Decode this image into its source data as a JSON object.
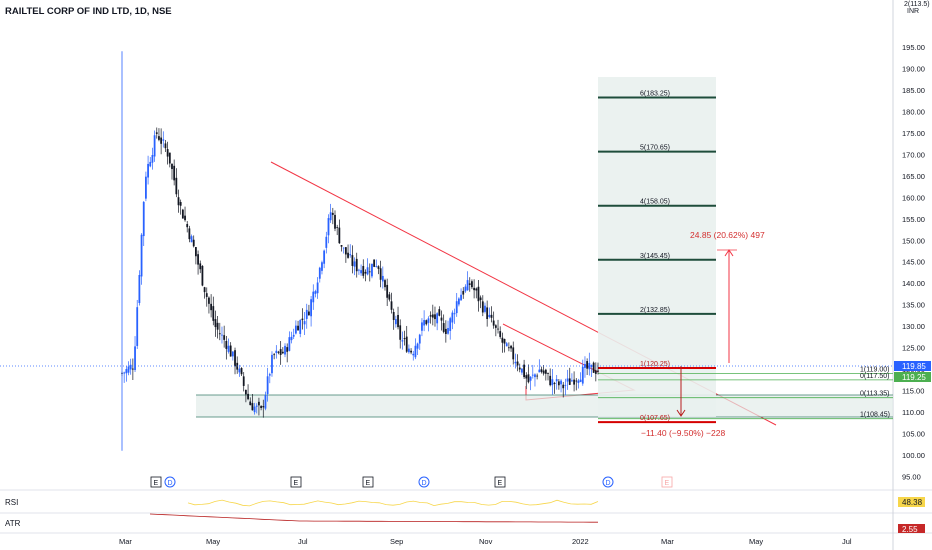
{
  "header": {
    "symbol_title": "RAILTEL CORP OF IND LTD, 1D, NSE",
    "currency_top": "2(113.5)",
    "currency": "INR"
  },
  "colors": {
    "up": "#2962ff",
    "down": "#131722",
    "trend": "#f23645",
    "fib": "#1e4d3b",
    "fib_red": "#d50000",
    "zone": "#e2ece9",
    "rsi": "#f7d64a",
    "atr": "#b71c1c",
    "price_green": "#4caf50",
    "price_blue": "#2962ff"
  },
  "price_axis": {
    "ticks": [
      "195.00",
      "190.00",
      "185.00",
      "180.00",
      "175.00",
      "170.00",
      "165.00",
      "160.00",
      "155.00",
      "150.00",
      "145.00",
      "140.00",
      "135.00",
      "130.00",
      "125.00",
      "120.00",
      "115.00",
      "110.00",
      "105.00",
      "100.00",
      "95.00"
    ]
  },
  "price_tags": {
    "last": "119.85",
    "green": "119.25"
  },
  "time_axis": {
    "labels": [
      "Mar",
      "May",
      "Jul",
      "Sep",
      "Nov",
      "2022",
      "Mar",
      "May",
      "Jul"
    ]
  },
  "events": [
    "E",
    "D",
    "E",
    "E",
    "D",
    "E",
    "D",
    "E"
  ],
  "fib_levels": [
    {
      "label": "6(183.25)",
      "price": 183.25,
      "major": true
    },
    {
      "label": "5(170.65)",
      "price": 170.65,
      "major": true
    },
    {
      "label": "4(158.05)",
      "price": 158.05,
      "major": true
    },
    {
      "label": "3(145.45)",
      "price": 145.45,
      "major": true
    },
    {
      "label": "2(132.85)",
      "price": 132.85,
      "major": true
    },
    {
      "label": "1(120.25)",
      "price": 120.25,
      "major": true,
      "red": true
    },
    {
      "label": "1(119.00)",
      "price": 119.0,
      "major": false
    },
    {
      "label": "0(117.50)",
      "price": 117.5,
      "major": false
    },
    {
      "label": "0(113.35)",
      "price": 113.35,
      "major": false
    },
    {
      "label": "1(108.45)",
      "price": 108.45,
      "major": false
    },
    {
      "label": "0(107.65)",
      "price": 107.65,
      "major": true,
      "red": true
    }
  ],
  "measure_up": "24.85 (20.62%) 497",
  "measure_down": "−11.40 (−9.50%) −228",
  "indicators": {
    "rsi": {
      "label": "RSI",
      "value": "48.38"
    },
    "atr": {
      "label": "ATR",
      "value": "2.55"
    }
  },
  "chart_data": {
    "type": "candlestick",
    "title": "RAILTEL CORP OF IND LTD, 1D, NSE",
    "y_range": [
      93,
      196
    ],
    "approx_close_path": [
      {
        "x": "Feb 26",
        "y": 119
      },
      {
        "x": "Mar 1",
        "y": 121
      },
      {
        "x": "Mar 2",
        "y": 165
      },
      {
        "x": "Mar 3",
        "y": 175
      },
      {
        "x": "Mar 5",
        "y": 170
      },
      {
        "x": "Mar 10",
        "y": 158
      },
      {
        "x": "Mar 15",
        "y": 150
      },
      {
        "x": "Mar 22",
        "y": 140
      },
      {
        "x": "Mar 30",
        "y": 130
      },
      {
        "x": "Apr 8",
        "y": 126
      },
      {
        "x": "Apr 15",
        "y": 120
      },
      {
        "x": "Apr 22",
        "y": 112
      },
      {
        "x": "May 1",
        "y": 110
      },
      {
        "x": "May 10",
        "y": 123
      },
      {
        "x": "May 20",
        "y": 124
      },
      {
        "x": "Jun 1",
        "y": 130
      },
      {
        "x": "Jun 10",
        "y": 133
      },
      {
        "x": "Jun 20",
        "y": 143
      },
      {
        "x": "Jun 25",
        "y": 157
      },
      {
        "x": "Jul 1",
        "y": 148
      },
      {
        "x": "Jul 8",
        "y": 144
      },
      {
        "x": "Jul 20",
        "y": 143
      },
      {
        "x": "Aug 1",
        "y": 145
      },
      {
        "x": "Aug 15",
        "y": 135
      },
      {
        "x": "Aug 25",
        "y": 127
      },
      {
        "x": "Sep 5",
        "y": 124
      },
      {
        "x": "Sep 15",
        "y": 131
      },
      {
        "x": "Sep 25",
        "y": 132
      },
      {
        "x": "Oct 1",
        "y": 129
      },
      {
        "x": "Oct 10",
        "y": 137
      },
      {
        "x": "Oct 18",
        "y": 140
      },
      {
        "x": "Oct 25",
        "y": 135
      },
      {
        "x": "Nov 1",
        "y": 130
      },
      {
        "x": "Nov 10",
        "y": 125
      },
      {
        "x": "Nov 20",
        "y": 122
      },
      {
        "x": "Nov 30",
        "y": 117
      },
      {
        "x": "Dec 8",
        "y": 120
      },
      {
        "x": "Dec 15",
        "y": 117
      },
      {
        "x": "Dec 22",
        "y": 116
      },
      {
        "x": "Dec 28",
        "y": 118
      },
      {
        "x": "Jan 3",
        "y": 120
      },
      {
        "x": "Jan 7",
        "y": 119.85
      }
    ],
    "rsi_last": 48.38,
    "atr_last": 2.55
  }
}
